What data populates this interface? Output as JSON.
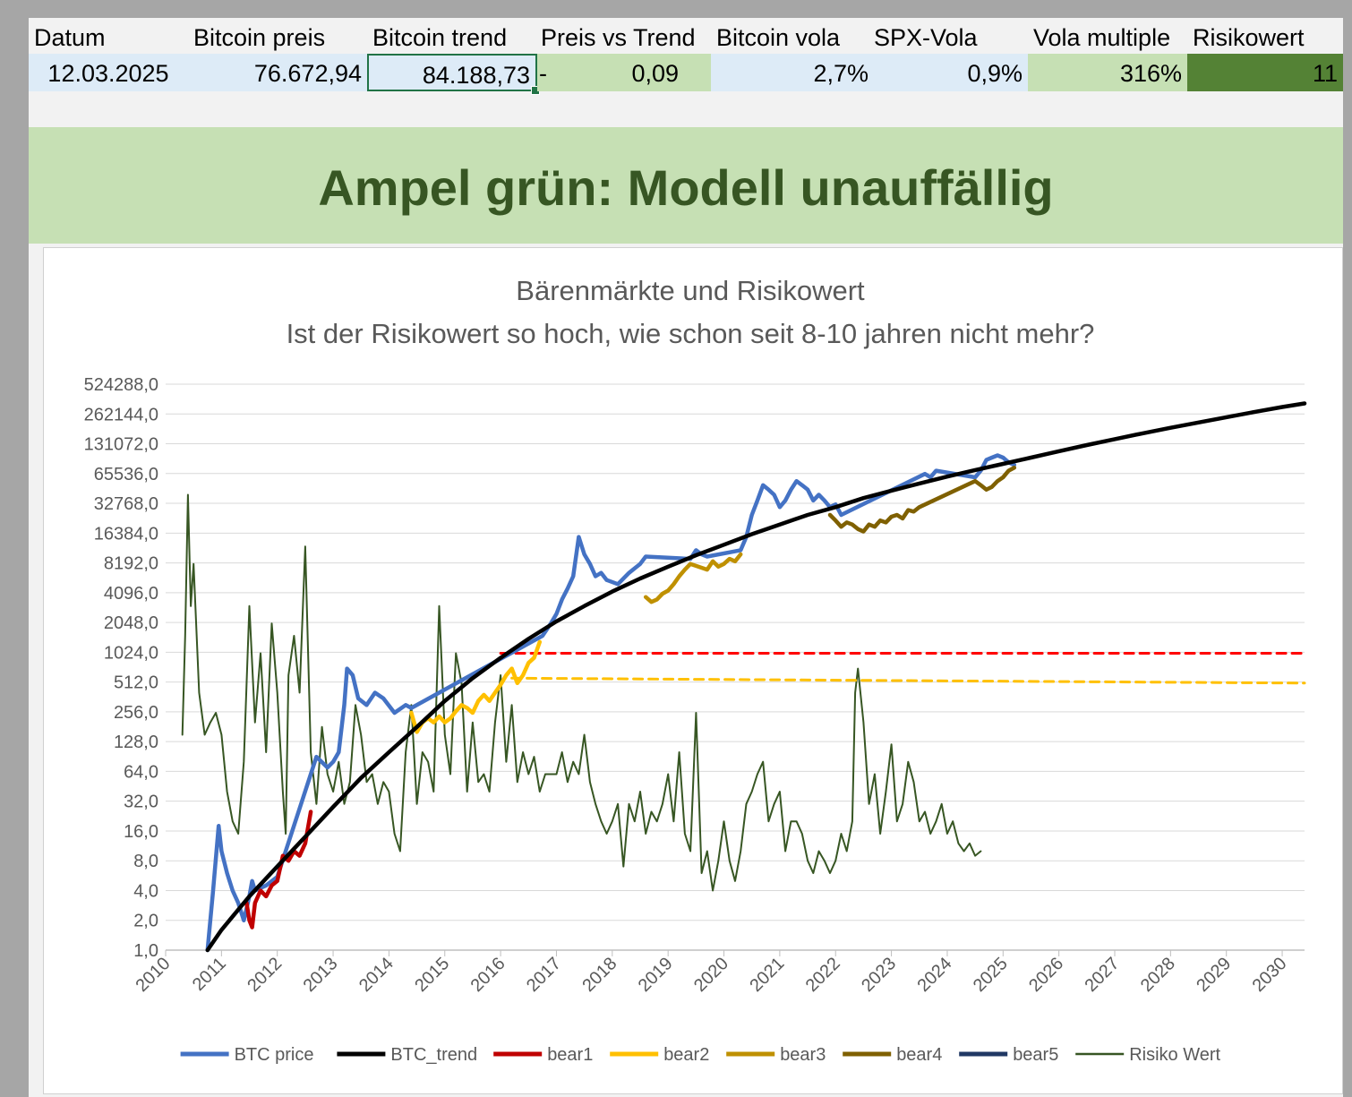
{
  "header": {
    "labels": [
      "Datum",
      "Bitcoin preis",
      "Bitcoin trend",
      "Preis vs Trend",
      "Bitcoin vola",
      "SPX-Vola",
      "Vola multiple",
      "Risikowert"
    ]
  },
  "values": {
    "datum": "12.03.2025",
    "preis": "76.672,94",
    "trend": "84.188,73",
    "pvt_sign": "-",
    "pvt": "0,09",
    "btc_vola": "2,7%",
    "spx_vola": "0,9%",
    "vola_multiple": "316%",
    "risikowert": "11"
  },
  "banner": {
    "text": "Ampel grün: Modell unauffällig"
  },
  "colors": {
    "header_bg": "#f2f2f2",
    "cell_blue": "#ddebf7",
    "cell_green": "#c6e0b4",
    "cell_dark_green": "#548235",
    "banner_text": "#375623"
  },
  "chart_data": {
    "type": "line",
    "title": "Bärenmärkte und Risikowert",
    "subtitle": "Ist der Risikowert so hoch, wie schon seit 8-10 jahren nicht mehr?",
    "y_scale": "log2",
    "y_ticks": [
      "1,0",
      "2,0",
      "4,0",
      "8,0",
      "16,0",
      "32,0",
      "64,0",
      "128,0",
      "256,0",
      "512,0",
      "1024,0",
      "2048,0",
      "4096,0",
      "8192,0",
      "16384,0",
      "32768,0",
      "65536,0",
      "131072,0",
      "262144,0",
      "524288,0"
    ],
    "x_ticks": [
      "2010",
      "2011",
      "2012",
      "2013",
      "2014",
      "2015",
      "2016",
      "2017",
      "2018",
      "2019",
      "2020",
      "2021",
      "2022",
      "2023",
      "2024",
      "2025",
      "2026",
      "2027",
      "2028",
      "2029",
      "2030"
    ],
    "xlim": [
      2010,
      2030.4
    ],
    "ylim": [
      1,
      524288
    ],
    "grid": "horizontal",
    "legend_position": "bottom",
    "series": [
      {
        "name": "BTC price",
        "color": "#4472c4",
        "width": 4.5,
        "x": [
          2010.75,
          2010.85,
          2010.95,
          2011.0,
          2011.1,
          2011.2,
          2011.3,
          2011.4,
          2011.5,
          2011.55,
          2011.6,
          2011.8,
          2012.0,
          2012.6,
          2012.7,
          2012.9,
          2013.0,
          2013.1,
          2013.2,
          2013.25,
          2013.35,
          2013.45,
          2013.6,
          2013.75,
          2013.9,
          2014.1,
          2014.3,
          2014.4,
          2016.75,
          2016.9,
          2017.0,
          2017.1,
          2017.2,
          2017.3,
          2017.4,
          2017.5,
          2017.6,
          2017.7,
          2017.8,
          2017.9,
          2018.1,
          2018.3,
          2018.5,
          2018.6,
          2019.4,
          2019.5,
          2019.6,
          2019.7,
          2020.3,
          2020.4,
          2020.5,
          2020.6,
          2020.7,
          2020.8,
          2020.9,
          2021.0,
          2021.1,
          2021.2,
          2021.3,
          2021.4,
          2021.5,
          2021.6,
          2021.7,
          2021.8,
          2021.9,
          2022.0,
          2022.1,
          2023.6,
          2023.7,
          2023.8,
          2024.5,
          2024.6,
          2024.7,
          2024.8,
          2024.9,
          2025.0,
          2025.1,
          2025.2
        ],
        "y": [
          1,
          4,
          18,
          10,
          6,
          4,
          3,
          2,
          3.5,
          5,
          4,
          4.5,
          5.5,
          60,
          90,
          70,
          80,
          100,
          300,
          700,
          600,
          350,
          300,
          400,
          350,
          250,
          300,
          280,
          1500,
          2000,
          2500,
          3500,
          4500,
          6000,
          15000,
          10000,
          8000,
          6000,
          6500,
          5500,
          5000,
          6500,
          8000,
          9500,
          9000,
          11000,
          10000,
          9500,
          11000,
          15000,
          25000,
          35000,
          50000,
          45000,
          40000,
          30000,
          35000,
          45000,
          55000,
          50000,
          45000,
          35000,
          40000,
          35000,
          30000,
          32000,
          25000,
          65000,
          60000,
          70000,
          60000,
          70000,
          90000,
          95000,
          100000,
          95000,
          85000,
          80000
        ]
      },
      {
        "name": "BTC_trend",
        "color": "#000000",
        "width": 4.5,
        "trend": true
      },
      {
        "name": "bear1",
        "color": "#c00000",
        "width": 4.5,
        "x": [
          2011.45,
          2011.5,
          2011.55,
          2011.6,
          2011.7,
          2011.8,
          2011.9,
          2012.0,
          2012.1,
          2012.2,
          2012.3,
          2012.4,
          2012.5,
          2012.6
        ],
        "y": [
          3,
          2,
          1.7,
          3,
          4,
          3.5,
          4.5,
          5,
          9,
          8,
          10,
          9,
          12,
          25
        ]
      },
      {
        "name": "bear2",
        "color": "#ffc000",
        "width": 4.5,
        "x": [
          2014.4,
          2014.5,
          2014.6,
          2014.7,
          2014.8,
          2014.9,
          2015.0,
          2015.1,
          2015.2,
          2015.3,
          2015.4,
          2015.5,
          2015.6,
          2015.7,
          2015.8,
          2015.9,
          2016.0,
          2016.1,
          2016.2,
          2016.3,
          2016.4,
          2016.5,
          2016.6,
          2016.7
        ],
        "y": [
          250,
          160,
          200,
          220,
          200,
          230,
          200,
          220,
          260,
          300,
          280,
          250,
          330,
          380,
          330,
          400,
          480,
          600,
          700,
          500,
          600,
          800,
          900,
          1300
        ]
      },
      {
        "name": "bear3",
        "color": "#bf9000",
        "width": 4.5,
        "x": [
          2018.6,
          2018.7,
          2018.8,
          2018.9,
          2019.0,
          2019.1,
          2019.2,
          2019.3,
          2019.4,
          2019.7,
          2019.8,
          2019.9,
          2020.0,
          2020.1,
          2020.2,
          2020.3
        ],
        "y": [
          3700,
          3300,
          3500,
          4000,
          4300,
          5000,
          6000,
          7000,
          8000,
          7000,
          8500,
          7500,
          8000,
          9000,
          8500,
          10000
        ]
      },
      {
        "name": "bear4",
        "color": "#7f6000",
        "width": 4.5,
        "x": [
          2021.9,
          2022.0,
          2022.1,
          2022.2,
          2022.3,
          2022.4,
          2022.5,
          2022.6,
          2022.7,
          2022.8,
          2022.9,
          2023.0,
          2023.1,
          2023.2,
          2023.3,
          2023.4,
          2023.5,
          2024.5,
          2024.6,
          2024.7,
          2024.8,
          2024.9,
          2025.0,
          2025.1,
          2025.2
        ],
        "y": [
          25000,
          22000,
          19000,
          21000,
          20000,
          18000,
          17000,
          20000,
          19000,
          22000,
          21000,
          24000,
          25000,
          23000,
          28000,
          27000,
          30000,
          55000,
          50000,
          45000,
          48000,
          55000,
          60000,
          70000,
          75000
        ]
      },
      {
        "name": "bear5",
        "color": "#203864",
        "width": 4.5,
        "x": [],
        "y": []
      },
      {
        "name": "Risiko Wert",
        "color": "#375623",
        "width": 2,
        "x": [
          2010.3,
          2010.35,
          2010.4,
          2010.45,
          2010.5,
          2010.6,
          2010.7,
          2010.8,
          2010.9,
          2011.0,
          2011.1,
          2011.2,
          2011.3,
          2011.4,
          2011.5,
          2011.6,
          2011.7,
          2011.8,
          2011.9,
          2012.0,
          2012.1,
          2012.15,
          2012.2,
          2012.3,
          2012.4,
          2012.5,
          2012.6,
          2012.7,
          2012.8,
          2012.9,
          2013.0,
          2013.1,
          2013.2,
          2013.3,
          2013.4,
          2013.5,
          2013.6,
          2013.7,
          2013.8,
          2013.9,
          2014.0,
          2014.1,
          2014.2,
          2014.3,
          2014.4,
          2014.5,
          2014.6,
          2014.7,
          2014.8,
          2014.9,
          2015.0,
          2015.1,
          2015.2,
          2015.3,
          2015.4,
          2015.5,
          2015.6,
          2015.7,
          2015.8,
          2015.9,
          2016.0,
          2016.1,
          2016.2,
          2016.3,
          2016.4,
          2016.5,
          2016.6,
          2016.7,
          2016.8,
          2016.9,
          2017.0,
          2017.1,
          2017.2,
          2017.3,
          2017.4,
          2017.5,
          2017.6,
          2017.7,
          2017.8,
          2017.9,
          2018.0,
          2018.1,
          2018.2,
          2018.3,
          2018.4,
          2018.5,
          2018.6,
          2018.7,
          2018.8,
          2018.9,
          2019.0,
          2019.1,
          2019.2,
          2019.3,
          2019.4,
          2019.5,
          2019.6,
          2019.7,
          2019.8,
          2019.9,
          2020.0,
          2020.1,
          2020.2,
          2020.3,
          2020.4,
          2020.5,
          2020.6,
          2020.7,
          2020.8,
          2020.9,
          2021.0,
          2021.1,
          2021.2,
          2021.3,
          2021.4,
          2021.5,
          2021.6,
          2021.7,
          2021.8,
          2021.9,
          2022.0,
          2022.1,
          2022.2,
          2022.3,
          2022.35,
          2022.4,
          2022.5,
          2022.6,
          2022.7,
          2022.8,
          2022.9,
          2023.0,
          2023.1,
          2023.2,
          2023.3,
          2023.4,
          2023.5,
          2023.6,
          2023.7,
          2023.8,
          2023.9,
          2024.0,
          2024.1,
          2024.2,
          2024.3,
          2024.4,
          2024.5,
          2024.6
        ],
        "y": [
          150,
          1500,
          40000,
          3000,
          8000,
          400,
          150,
          200,
          250,
          150,
          40,
          20,
          15,
          80,
          3000,
          200,
          1000,
          100,
          2000,
          400,
          40,
          15,
          600,
          1500,
          400,
          12000,
          100,
          30,
          180,
          60,
          40,
          80,
          30,
          50,
          300,
          150,
          50,
          60,
          30,
          50,
          40,
          15,
          10,
          100,
          300,
          30,
          100,
          80,
          40,
          3000,
          150,
          60,
          1000,
          500,
          40,
          200,
          50,
          60,
          40,
          200,
          600,
          80,
          300,
          50,
          100,
          60,
          90,
          40,
          60,
          60,
          60,
          100,
          50,
          80,
          60,
          150,
          50,
          30,
          20,
          15,
          20,
          30,
          7,
          30,
          20,
          40,
          15,
          25,
          20,
          30,
          60,
          20,
          100,
          15,
          10,
          250,
          6,
          10,
          4,
          8,
          20,
          8,
          5,
          10,
          30,
          40,
          60,
          80,
          20,
          30,
          40,
          10,
          20,
          20,
          15,
          8,
          6,
          10,
          8,
          6,
          8,
          15,
          10,
          20,
          400,
          700,
          200,
          30,
          60,
          15,
          40,
          120,
          20,
          30,
          80,
          50,
          20,
          25,
          15,
          20,
          30,
          15,
          20,
          12,
          10,
          12,
          9,
          10
        ]
      },
      {
        "name": "bear1 ref",
        "color": "#ff0000",
        "width": 3,
        "dashed": true,
        "legend": false,
        "x": [
          2016.0,
          2030.4
        ],
        "y": [
          1000,
          1000
        ]
      },
      {
        "name": "bear2 ref",
        "color": "#ffc000",
        "width": 3,
        "dashed": true,
        "legend": false,
        "x": [
          2016.2,
          2030.4
        ],
        "y": [
          560,
          500
        ]
      }
    ],
    "trend_points": {
      "x": [
        2010.75,
        2011.0,
        2011.5,
        2012.0,
        2012.5,
        2013.0,
        2013.5,
        2014.0,
        2014.5,
        2015.0,
        2015.5,
        2016.0,
        2016.5,
        2017.0,
        2017.5,
        2018.0,
        2018.5,
        2019.0,
        2019.5,
        2020.0,
        2020.5,
        2021.0,
        2021.5,
        2022.0,
        2022.5,
        2023.0,
        2023.5,
        2024.0,
        2024.5,
        2025.0,
        2025.5,
        2026.0,
        2026.5,
        2027.0,
        2027.5,
        2028.0,
        2028.5,
        2029.0,
        2029.5,
        2030.0,
        2030.4
      ],
      "y": [
        1,
        1.6,
        3.5,
        7,
        14,
        28,
        55,
        100,
        180,
        330,
        560,
        900,
        1400,
        2100,
        3000,
        4200,
        5700,
        7500,
        9800,
        12500,
        16000,
        20000,
        25000,
        30000,
        37000,
        44000,
        52000,
        61000,
        71000,
        82000,
        95000,
        110000,
        127000,
        146000,
        167000,
        190000,
        215000,
        243000,
        274000,
        308000,
        335000
      ]
    }
  }
}
